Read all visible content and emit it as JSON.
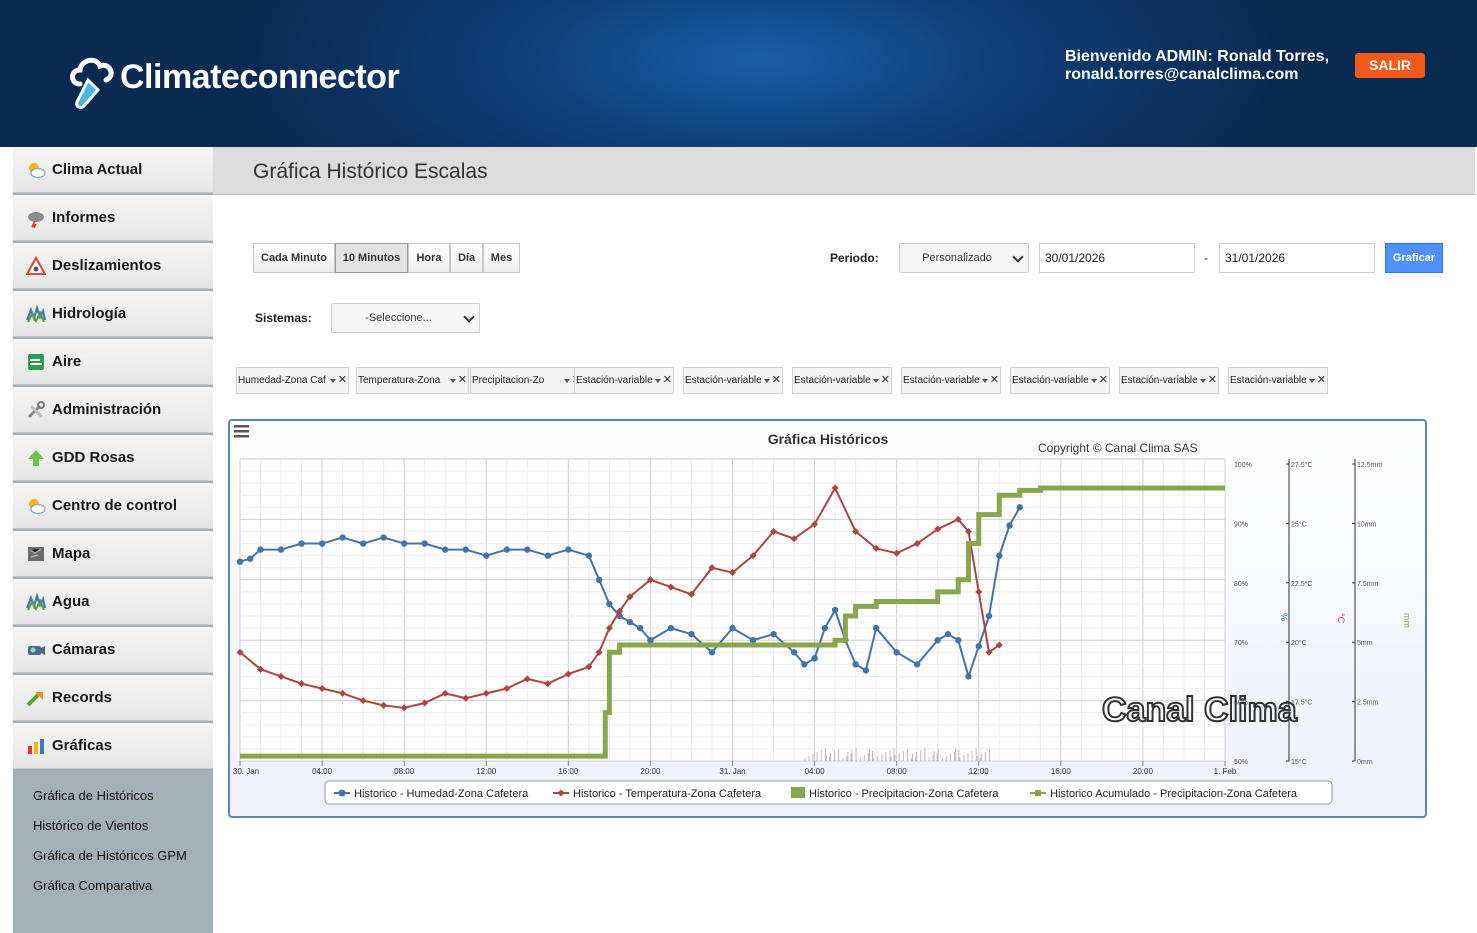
{
  "header": {
    "logo_text": "Climateconnector",
    "welcome_line1": "Bienvenido ADMIN: Ronald Torres,",
    "welcome_line2": "ronald.torres@canalclima.com",
    "logout_label": "SALIR"
  },
  "sidebar": {
    "items": [
      {
        "label": "Clima Actual",
        "icon": "sun-cloud-icon"
      },
      {
        "label": "Informes",
        "icon": "storm-cloud-icon"
      },
      {
        "label": "Deslizamientos",
        "icon": "warning-icon"
      },
      {
        "label": "Hidrología",
        "icon": "hydrology-icon"
      },
      {
        "label": "Aire",
        "icon": "air-icon"
      },
      {
        "label": "Administración",
        "icon": "tools-icon"
      },
      {
        "label": "GDD Rosas",
        "icon": "arrow-up-icon"
      },
      {
        "label": "Centro de control",
        "icon": "sun-cloud-icon"
      },
      {
        "label": "Mapa",
        "icon": "map-icon"
      },
      {
        "label": "Agua",
        "icon": "water-icon"
      },
      {
        "label": "Cámaras",
        "icon": "camera-icon"
      },
      {
        "label": "Records",
        "icon": "trend-arrow-icon"
      },
      {
        "label": "Gráficas",
        "icon": "bar-chart-icon"
      }
    ],
    "subitems": [
      "Gráfica de Históricos",
      "Histórico de Vientos",
      "Gráfica de Históricos GPM",
      "Gráfica Comparativa"
    ]
  },
  "page": {
    "title": "Gráfica Histórico Escalas"
  },
  "controls": {
    "interval_buttons": [
      "Cada Minuto",
      "10 Minutos",
      "Hora",
      "Día",
      "Mes"
    ],
    "interval_selected": "10 Minutos",
    "period_label": "Periodo:",
    "period_value": "Personalizado",
    "date_from": "30/01/2026",
    "date_sep": "-",
    "date_to": "31/01/2026",
    "graph_button": "Graficar",
    "systems_label": "Sistemas:",
    "systems_value": "-Seleccione..."
  },
  "variables": [
    "Humedad-Zona Caf",
    "Temperatura-Zona",
    "Precipitacion-Zo",
    "Estación-variable",
    "Estación-variable",
    "Estación-variable",
    "Estación-variable",
    "Estación-variable",
    "Estación-variable",
    "Estación-variable"
  ],
  "colors": {
    "humidity": "#4572a7",
    "temperature": "#aa4643",
    "precip": "#89a54e",
    "accent": "#4d90fe",
    "logout": "#f25a1c"
  },
  "chart_data": {
    "type": "line",
    "title": "Gráfica Históricos",
    "credits": "Copyright © Canal Clima SAS",
    "watermark": "Canal Clima",
    "x_ticks": [
      "30. Jan",
      "04:00",
      "08:00",
      "12:00",
      "16:00",
      "20:00",
      "31. Jan",
      "04:00",
      "08:00",
      "12:00",
      "16:00",
      "20:00",
      "1. Feb"
    ],
    "axes": [
      {
        "id": "hum",
        "unit": "%",
        "ticks": [
          "100%",
          "90%",
          "80%",
          "70%",
          "60%",
          "50%"
        ],
        "range": [
          50,
          100
        ]
      },
      {
        "id": "temp",
        "unit": "°C",
        "ticks": [
          "27.5°C",
          "25°C",
          "22.5°C",
          "20°C",
          "17.5°C",
          "15°C"
        ],
        "range": [
          15,
          27.5
        ]
      },
      {
        "id": "mm",
        "unit": "mm",
        "ticks": [
          "12.5mm",
          "10mm",
          "7.5mm",
          "5mm",
          "2.5mm",
          "0mm"
        ],
        "range": [
          0,
          12.5
        ]
      }
    ],
    "x_range_hours": [
      0,
      48
    ],
    "series": [
      {
        "name": "Historico - Humedad-Zona Cafetera",
        "axis": "hum",
        "type": "line",
        "points": [
          [
            0,
            83
          ],
          [
            0.5,
            83.5
          ],
          [
            1,
            85
          ],
          [
            2,
            85
          ],
          [
            3,
            86
          ],
          [
            4,
            86
          ],
          [
            5,
            87
          ],
          [
            6,
            86
          ],
          [
            7,
            87
          ],
          [
            8,
            86
          ],
          [
            9,
            86
          ],
          [
            10,
            85
          ],
          [
            11,
            85
          ],
          [
            12,
            84
          ],
          [
            13,
            85
          ],
          [
            14,
            85
          ],
          [
            15,
            84
          ],
          [
            16,
            85
          ],
          [
            17,
            84
          ],
          [
            17.5,
            80
          ],
          [
            18,
            76
          ],
          [
            18.5,
            74
          ],
          [
            19,
            73
          ],
          [
            19.5,
            72
          ],
          [
            20,
            70
          ],
          [
            21,
            72
          ],
          [
            22,
            71
          ],
          [
            23,
            68
          ],
          [
            24,
            72
          ],
          [
            25,
            70
          ],
          [
            26,
            71
          ],
          [
            27,
            68
          ],
          [
            27.5,
            66
          ],
          [
            28,
            67
          ],
          [
            28.5,
            72
          ],
          [
            29,
            75
          ],
          [
            29.5,
            70
          ],
          [
            30,
            66
          ],
          [
            30.5,
            65
          ],
          [
            31,
            72
          ],
          [
            32,
            68
          ],
          [
            33,
            66
          ],
          [
            34,
            70
          ],
          [
            34.5,
            71
          ],
          [
            35,
            70
          ],
          [
            35.5,
            64
          ],
          [
            36,
            69
          ],
          [
            36.5,
            74
          ],
          [
            37,
            84
          ],
          [
            37.5,
            89
          ],
          [
            38,
            92
          ]
        ]
      },
      {
        "name": "Historico - Temperatura-Zona Cafetera",
        "axis": "temp",
        "type": "line",
        "points": [
          [
            0,
            19.5
          ],
          [
            1,
            18.8
          ],
          [
            2,
            18.5
          ],
          [
            3,
            18.2
          ],
          [
            4,
            18
          ],
          [
            5,
            17.8
          ],
          [
            6,
            17.5
          ],
          [
            7,
            17.3
          ],
          [
            8,
            17.2
          ],
          [
            9,
            17.4
          ],
          [
            10,
            17.8
          ],
          [
            11,
            17.6
          ],
          [
            12,
            17.8
          ],
          [
            13,
            18
          ],
          [
            14,
            18.4
          ],
          [
            15,
            18.2
          ],
          [
            16,
            18.6
          ],
          [
            17,
            18.9
          ],
          [
            17.5,
            19.5
          ],
          [
            18,
            20.5
          ],
          [
            18.5,
            21.2
          ],
          [
            19,
            21.8
          ],
          [
            20,
            22.5
          ],
          [
            21,
            22.2
          ],
          [
            22,
            21.9
          ],
          [
            23,
            23
          ],
          [
            24,
            22.8
          ],
          [
            25,
            23.5
          ],
          [
            26,
            24.5
          ],
          [
            27,
            24.2
          ],
          [
            28,
            24.8
          ],
          [
            29,
            26.3
          ],
          [
            30,
            24.5
          ],
          [
            31,
            23.8
          ],
          [
            32,
            23.6
          ],
          [
            33,
            24
          ],
          [
            34,
            24.6
          ],
          [
            35,
            25
          ],
          [
            35.5,
            24.5
          ],
          [
            36,
            22
          ],
          [
            36.5,
            19.5
          ],
          [
            37,
            19.8
          ]
        ]
      },
      {
        "name": "Historico - Precipitacion-Zona Cafetera",
        "axis": "mm",
        "type": "column",
        "points": []
      },
      {
        "name": "Historico Acumulado - Precipitacion-Zona Cafetera",
        "axis": "mm",
        "type": "line",
        "points": [
          [
            0,
            0.2
          ],
          [
            17.5,
            0.2
          ],
          [
            17.8,
            2
          ],
          [
            18,
            4.5
          ],
          [
            18.5,
            4.8
          ],
          [
            24,
            4.8
          ],
          [
            28,
            4.8
          ],
          [
            29,
            5
          ],
          [
            29.5,
            6
          ],
          [
            30,
            6.4
          ],
          [
            31,
            6.6
          ],
          [
            33,
            6.6
          ],
          [
            34,
            7
          ],
          [
            35,
            7.5
          ],
          [
            35.5,
            9
          ],
          [
            36,
            10.2
          ],
          [
            37,
            11
          ],
          [
            38,
            11.2
          ],
          [
            39,
            11.3
          ],
          [
            48,
            11.3
          ]
        ]
      }
    ]
  }
}
